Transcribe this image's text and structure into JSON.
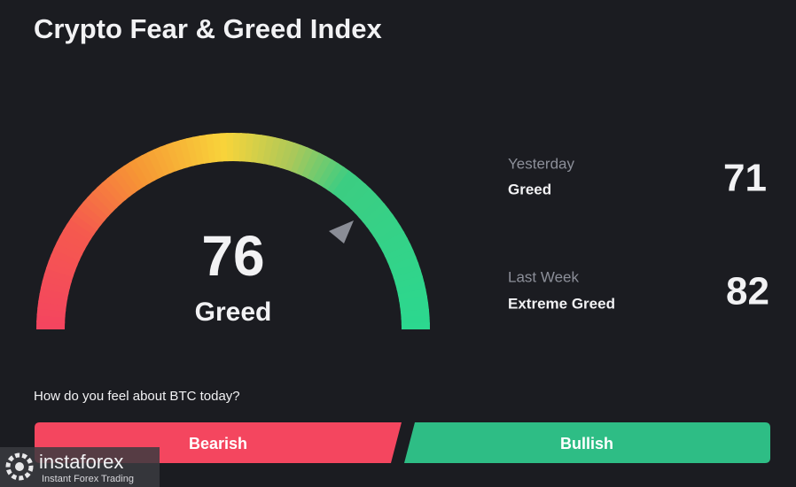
{
  "header": {
    "title": "Crypto Fear & Greed Index"
  },
  "gauge": {
    "value": "76",
    "label": "Greed"
  },
  "history": [
    {
      "period": "Yesterday",
      "label": "Greed",
      "value": "71"
    },
    {
      "period": "Last Week",
      "label": "Extreme Greed",
      "value": "82"
    }
  ],
  "question": "How do you feel about BTC today?",
  "buttons": [
    "Bearish",
    "Bullish"
  ],
  "watermark": {
    "brand": "instaforex",
    "tagline": "Instant Forex Trading"
  }
}
